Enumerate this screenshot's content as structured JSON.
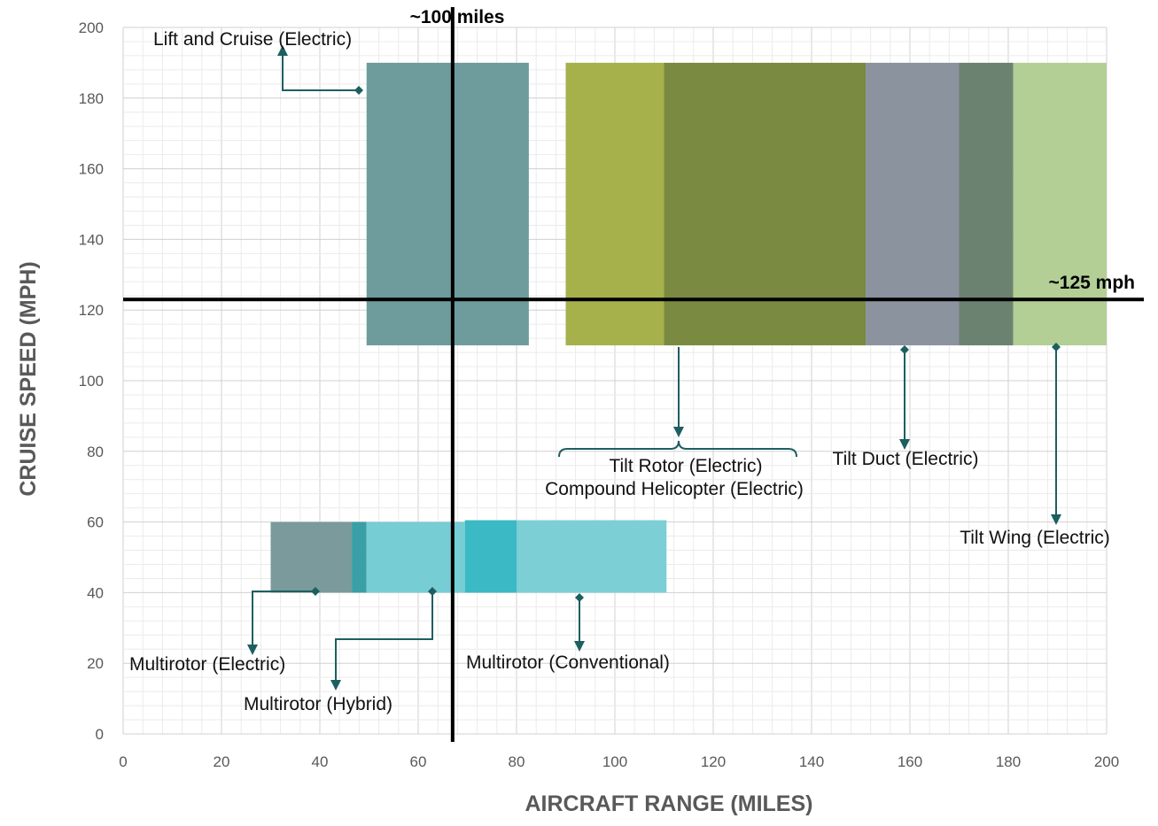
{
  "chart_data": {
    "type": "range-area",
    "title": "",
    "xlabel": "AIRCRAFT RANGE (MILES)",
    "ylabel": "CRUISE SPEED (MPH)",
    "xlim": [
      0,
      200
    ],
    "ylim": [
      0,
      200
    ],
    "x_ticks": [
      "0",
      "20",
      "40",
      "60",
      "80",
      "100",
      "120",
      "140",
      "160",
      "180",
      "200"
    ],
    "y_ticks": [
      "0",
      "20",
      "40",
      "60",
      "80",
      "100",
      "120",
      "140",
      "160",
      "180",
      "200"
    ],
    "grid": true,
    "reference_lines": [
      {
        "axis": "x",
        "value": 67,
        "label": "~100 miles"
      },
      {
        "axis": "y",
        "value": 123,
        "label": "~125 mph"
      }
    ],
    "regions": [
      {
        "name": "Lift and Cruise (Electric)",
        "x": [
          49.5,
          82.5
        ],
        "y": [
          110,
          190
        ],
        "color": "#6e9c9d"
      },
      {
        "name": "Tilt Rotor (Electric)",
        "x": [
          90,
          110
        ],
        "y": [
          110,
          190
        ],
        "color": "#a6b14c"
      },
      {
        "name": "Tilt Rotor / Compound Helicopter overlap",
        "x": [
          110,
          151
        ],
        "y": [
          110,
          190
        ],
        "color": "#7a8a41"
      },
      {
        "name": "Tilt Duct (Electric)",
        "x": [
          151,
          170
        ],
        "y": [
          110,
          190
        ],
        "color": "#8a939e"
      },
      {
        "name": "Tilt Duct / Tilt Wing overlap",
        "x": [
          170,
          181
        ],
        "y": [
          110,
          190
        ],
        "color": "#6b8270"
      },
      {
        "name": "Tilt Wing (Electric)",
        "x": [
          181,
          200
        ],
        "y": [
          110,
          190
        ],
        "color": "#b3cf96"
      },
      {
        "name": "Multirotor (Electric)",
        "x": [
          30,
          46.5
        ],
        "y": [
          40,
          60
        ],
        "color": "#7a9a9b"
      },
      {
        "name": "Multirotor overlap",
        "x": [
          46.5,
          49.5
        ],
        "y": [
          40,
          60
        ],
        "color": "#3a9fa6"
      },
      {
        "name": "Multirotor (Hybrid)",
        "x": [
          49.5,
          69.5
        ],
        "y": [
          40,
          60
        ],
        "color": "#76cdd4"
      },
      {
        "name": "Multirotor (Hybrid) / (Conventional) overlap",
        "x": [
          69.5,
          80
        ],
        "y": [
          40,
          60.5
        ],
        "color": "#3bb9c4"
      },
      {
        "name": "Multirotor (Conventional)",
        "x": [
          80,
          110.5
        ],
        "y": [
          40,
          60.5
        ],
        "color": "#7bcfd5"
      }
    ],
    "annotations": [
      {
        "label": "Lift and Cruise (Electric)"
      },
      {
        "label": "Tilt Rotor (Electric)"
      },
      {
        "label": "Compound Helicopter (Electric)"
      },
      {
        "label": "Tilt Duct (Electric)"
      },
      {
        "label": "Tilt Wing (Electric)"
      },
      {
        "label": "Multirotor (Electric)"
      },
      {
        "label": "Multirotor (Hybrid)"
      },
      {
        "label": "Multirotor (Conventional)"
      }
    ],
    "connector_color": "#1d5f60"
  }
}
